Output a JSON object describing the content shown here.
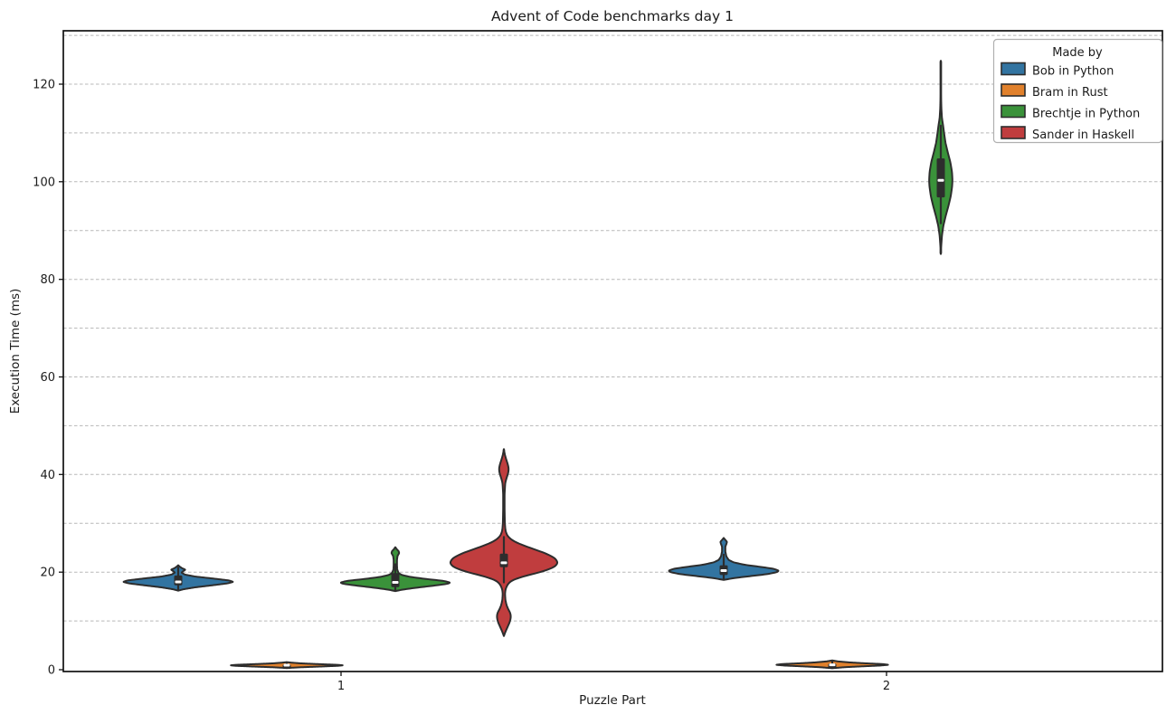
{
  "chart_data": {
    "type": "violin",
    "title": "Advent of Code benchmarks day 1",
    "xlabel": "Puzzle Part",
    "ylabel": "Execution Time (ms)",
    "categories": [
      "1",
      "2"
    ],
    "yticks": [
      0,
      20,
      40,
      60,
      80,
      100,
      120
    ],
    "ylim": [
      -0.4,
      131
    ],
    "grid": "horizontal-dashed-every-10ms",
    "legend_title": "Made by",
    "legend_position": "upper right",
    "series": [
      {
        "name": "Bob in Python",
        "color": "#3274a1"
      },
      {
        "name": "Bram in Rust",
        "color": "#e1812c"
      },
      {
        "name": "Brechtje in Python",
        "color": "#3a923a"
      },
      {
        "name": "Sander in Haskell",
        "color": "#c03d3e"
      }
    ],
    "edge_color": "#2d2d2d",
    "grid_color": "#b8b8b8",
    "violins": [
      {
        "series": "Bob in Python",
        "category": "1",
        "offset": -0.3,
        "width_units": 0.203,
        "box": {
          "q1": 17.3,
          "median": 18.0,
          "q3": 19.3,
          "whisker_low": 16.5,
          "whisker_high": 20.9
        },
        "profile": [
          [
            16.2,
            0
          ],
          [
            16.5,
            0.1
          ],
          [
            16.9,
            0.32
          ],
          [
            17.3,
            0.62
          ],
          [
            17.7,
            0.9
          ],
          [
            18.0,
            1.0
          ],
          [
            18.3,
            0.92
          ],
          [
            18.7,
            0.62
          ],
          [
            19.1,
            0.3
          ],
          [
            19.5,
            0.12
          ],
          [
            19.9,
            0.06
          ],
          [
            20.2,
            0.09
          ],
          [
            20.5,
            0.13
          ],
          [
            20.8,
            0.07
          ],
          [
            21.1,
            0.03
          ],
          [
            21.4,
            0
          ]
        ]
      },
      {
        "series": "Bram in Rust",
        "category": "1",
        "offset": -0.1,
        "width_units": 0.207,
        "box": {
          "q1": 0.75,
          "median": 0.92,
          "q3": 1.1,
          "whisker_low": 0.45,
          "whisker_high": 1.45
        },
        "profile": [
          [
            0.35,
            0
          ],
          [
            0.5,
            0.25
          ],
          [
            0.65,
            0.6
          ],
          [
            0.8,
            0.92
          ],
          [
            0.9,
            1.0
          ],
          [
            1.0,
            0.9
          ],
          [
            1.15,
            0.55
          ],
          [
            1.3,
            0.25
          ],
          [
            1.45,
            0.08
          ],
          [
            1.55,
            0
          ]
        ]
      },
      {
        "series": "Brechtje in Python",
        "category": "1",
        "offset": 0.1,
        "width_units": 0.203,
        "box": {
          "q1": 16.9,
          "median": 17.9,
          "q3": 19.8,
          "whisker_low": 16.3,
          "whisker_high": 21.6
        },
        "profile": [
          [
            16.1,
            0
          ],
          [
            16.4,
            0.12
          ],
          [
            16.8,
            0.38
          ],
          [
            17.2,
            0.68
          ],
          [
            17.6,
            0.95
          ],
          [
            17.85,
            1.0
          ],
          [
            18.2,
            0.88
          ],
          [
            18.6,
            0.55
          ],
          [
            19.0,
            0.28
          ],
          [
            19.4,
            0.12
          ],
          [
            19.8,
            0.06
          ],
          [
            20.5,
            0.035
          ],
          [
            21.5,
            0.03
          ],
          [
            22.5,
            0.03
          ],
          [
            23.3,
            0.04
          ],
          [
            23.9,
            0.07
          ],
          [
            24.3,
            0.06
          ],
          [
            24.7,
            0.025
          ],
          [
            25.1,
            0
          ]
        ]
      },
      {
        "series": "Sander in Haskell",
        "category": "1",
        "offset": 0.3,
        "width_units": 0.2,
        "box": {
          "q1": 21.0,
          "median": 21.9,
          "q3": 23.8,
          "whisker_low": 17.9,
          "whisker_high": 27.2
        },
        "profile": [
          [
            6.9,
            0
          ],
          [
            7.8,
            0.03
          ],
          [
            8.8,
            0.07
          ],
          [
            9.8,
            0.11
          ],
          [
            10.8,
            0.13
          ],
          [
            11.6,
            0.12
          ],
          [
            12.4,
            0.08
          ],
          [
            13.2,
            0.05
          ],
          [
            14.2,
            0.03
          ],
          [
            15.5,
            0.02
          ],
          [
            16.5,
            0.03
          ],
          [
            17.5,
            0.07
          ],
          [
            18.3,
            0.14
          ],
          [
            19.2,
            0.38
          ],
          [
            20.0,
            0.68
          ],
          [
            21.0,
            0.93
          ],
          [
            21.9,
            1.0
          ],
          [
            22.9,
            0.94
          ],
          [
            23.9,
            0.76
          ],
          [
            24.9,
            0.5
          ],
          [
            25.9,
            0.26
          ],
          [
            26.7,
            0.13
          ],
          [
            27.5,
            0.06
          ],
          [
            28.5,
            0.03
          ],
          [
            30,
            0.018
          ],
          [
            33,
            0.013
          ],
          [
            36,
            0.013
          ],
          [
            38.3,
            0.025
          ],
          [
            39.3,
            0.05
          ],
          [
            40.3,
            0.08
          ],
          [
            41.2,
            0.09
          ],
          [
            42.2,
            0.07
          ],
          [
            43.2,
            0.04
          ],
          [
            44.2,
            0.015
          ],
          [
            45.2,
            0
          ]
        ]
      },
      {
        "series": "Bob in Python",
        "category": "2",
        "offset": -0.3,
        "width_units": 0.203,
        "box": {
          "q1": 19.4,
          "median": 20.3,
          "q3": 21.4,
          "whisker_low": 18.7,
          "whisker_high": 23.6
        },
        "profile": [
          [
            18.4,
            0
          ],
          [
            18.8,
            0.2
          ],
          [
            19.2,
            0.5
          ],
          [
            19.6,
            0.8
          ],
          [
            20.0,
            0.97
          ],
          [
            20.3,
            1.0
          ],
          [
            20.7,
            0.9
          ],
          [
            21.1,
            0.65
          ],
          [
            21.5,
            0.38
          ],
          [
            22.0,
            0.18
          ],
          [
            22.5,
            0.09
          ],
          [
            23.2,
            0.05
          ],
          [
            24.2,
            0.03
          ],
          [
            25.2,
            0.03
          ],
          [
            25.8,
            0.05
          ],
          [
            26.2,
            0.06
          ],
          [
            26.6,
            0.03
          ],
          [
            27.0,
            0
          ]
        ]
      },
      {
        "series": "Bram in Rust",
        "category": "2",
        "offset": -0.1,
        "width_units": 0.207,
        "box": {
          "q1": 0.85,
          "median": 1.0,
          "q3": 1.25,
          "whisker_low": 0.5,
          "whisker_high": 1.65
        },
        "profile": [
          [
            0.3,
            0
          ],
          [
            0.5,
            0.2
          ],
          [
            0.7,
            0.55
          ],
          [
            0.85,
            0.85
          ],
          [
            1.0,
            1.0
          ],
          [
            1.15,
            0.9
          ],
          [
            1.3,
            0.6
          ],
          [
            1.5,
            0.3
          ],
          [
            1.7,
            0.1
          ],
          [
            1.9,
            0
          ]
        ]
      },
      {
        "series": "Brechtje in Python",
        "category": "2",
        "offset": 0.1,
        "width_units": 0.043,
        "box": {
          "q1": 96.8,
          "median": 100.3,
          "q3": 104.8,
          "whisker_low": 91.5,
          "whisker_high": 111.5
        },
        "profile": [
          [
            85.2,
            0
          ],
          [
            87,
            0.04
          ],
          [
            89,
            0.1
          ],
          [
            91,
            0.22
          ],
          [
            93,
            0.42
          ],
          [
            95,
            0.65
          ],
          [
            97,
            0.85
          ],
          [
            99,
            0.97
          ],
          [
            100.3,
            1.0
          ],
          [
            102,
            0.96
          ],
          [
            104,
            0.82
          ],
          [
            106,
            0.6
          ],
          [
            108,
            0.4
          ],
          [
            110,
            0.28
          ],
          [
            111.5,
            0.2
          ],
          [
            113,
            0.1
          ],
          [
            115,
            0.05
          ],
          [
            117,
            0.03
          ],
          [
            119,
            0.025
          ],
          [
            121,
            0.02
          ],
          [
            123,
            0.012
          ],
          [
            124.8,
            0
          ]
        ]
      }
    ]
  }
}
